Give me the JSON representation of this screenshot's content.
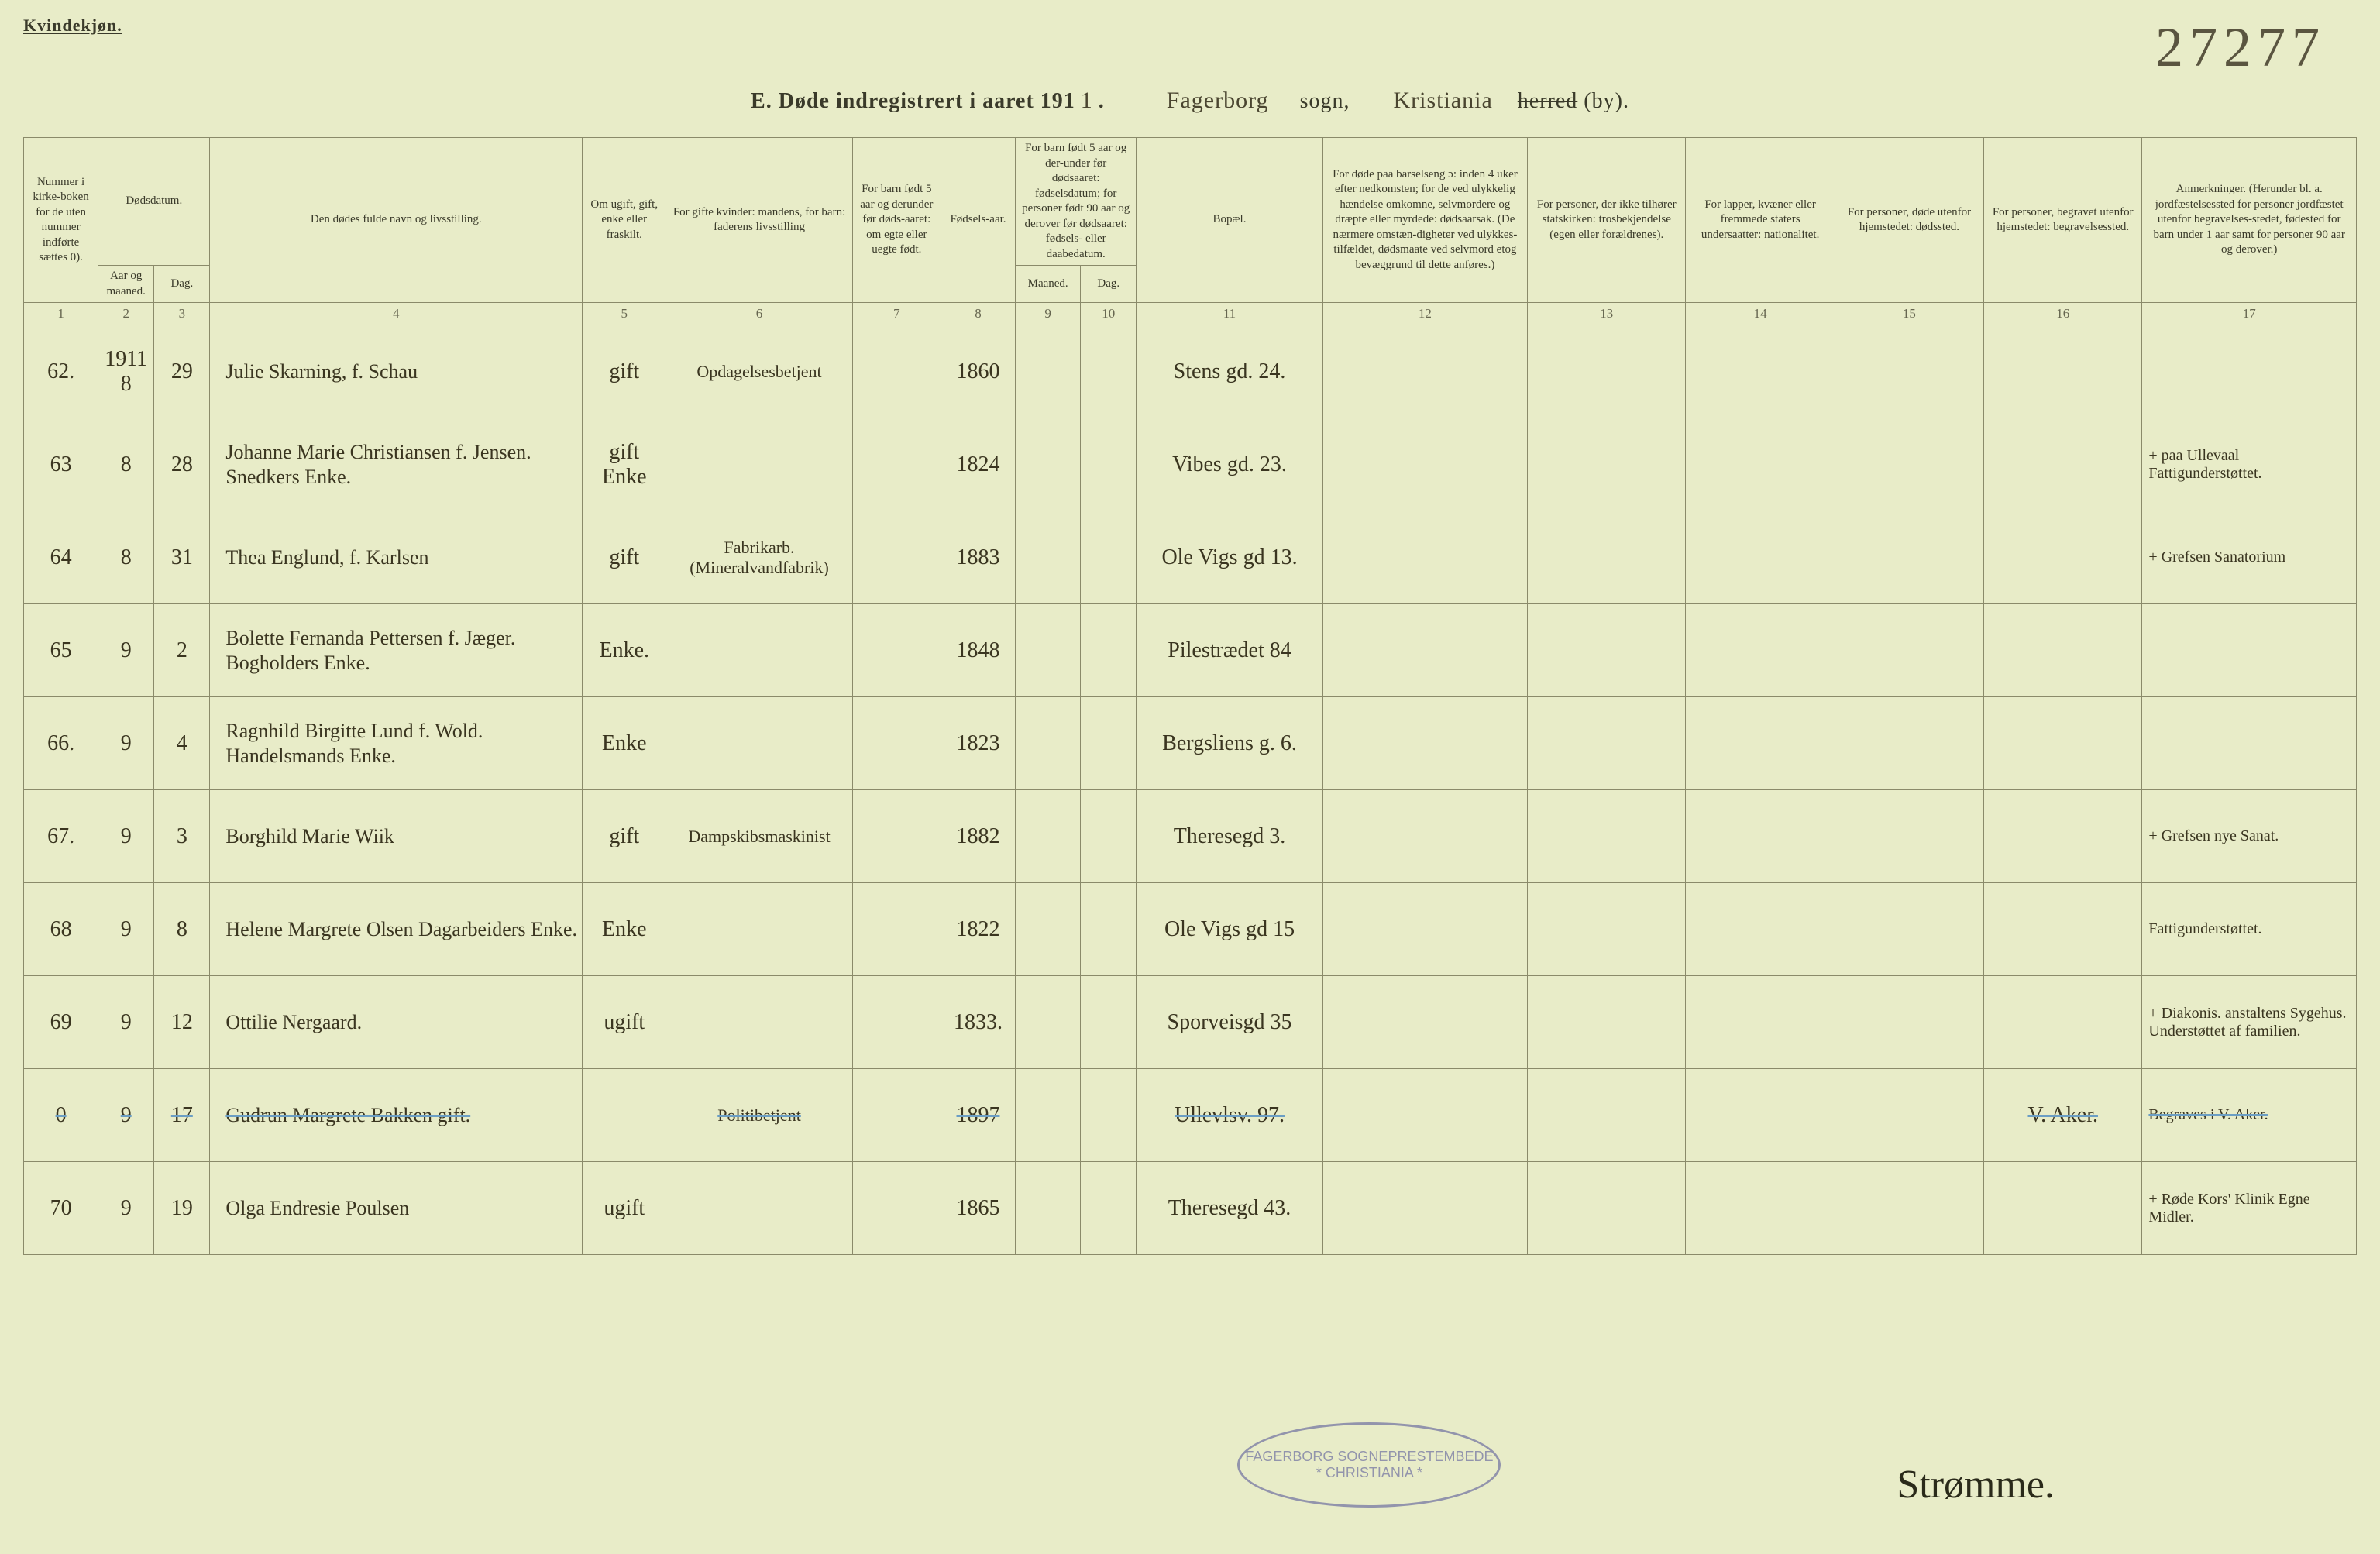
{
  "header": {
    "gender": "Kvindekjøn.",
    "page_number": "27277",
    "section_letter": "E.",
    "title_prefix": "Døde indregistrert i aaret 191",
    "year_suffix": "1",
    "sogn": "Fagerborg",
    "sogn_label": "sogn,",
    "by": "Kristiania",
    "herred_struck": "herred",
    "by_label": "(by)."
  },
  "columns": {
    "h1": "Nummer i kirke-boken for de uten nummer indførte sættes 0).",
    "h2_group": "Dødsdatum.",
    "h2": "Aar og maaned.",
    "h3": "Dag.",
    "h4": "Den dødes fulde navn og livsstilling.",
    "h5": "Om ugift, gift, enke eller fraskilt.",
    "h6": "For gifte kvinder: mandens, for barn: faderens livsstilling",
    "h7": "For barn født 5 aar og derunder før døds-aaret: om egte eller uegte født.",
    "h8": "Fødsels-aar.",
    "h9_group": "For barn født 5 aar og der-under før dødsaaret: fødselsdatum; for personer født 90 aar og derover før dødsaaret: fødsels- eller daabedatum.",
    "h9": "Maaned.",
    "h10": "Dag.",
    "h11": "Bopæl.",
    "h12": "For døde paa barselseng ɔ: inden 4 uker efter nedkomsten; for de ved ulykkelig hændelse omkomne, selvmordere og dræpte eller myrdede: dødsaarsak. (De nærmere omstæn-digheter ved ulykkes-tilfældet, dødsmaate ved selvmord etog bevæggrund til dette anføres.)",
    "h13": "For personer, der ikke tilhører statskirken: trosbekjendelse (egen eller forældrenes).",
    "h14": "For lapper, kvæner eller fremmede staters undersaatter: nationalitet.",
    "h15": "For personer, døde utenfor hjemstedet: dødssted.",
    "h16": "For personer, begravet utenfor hjemstedet: begravelsessted.",
    "h17": "Anmerkninger. (Herunder bl. a. jordfæstelsessted for personer jordfæstet utenfor begravelses-stedet, fødested for barn under 1 aar samt for personer 90 aar og derover.)"
  },
  "colnums": [
    "1",
    "2",
    "3",
    "4",
    "5",
    "6",
    "7",
    "8",
    "9",
    "10",
    "11",
    "12",
    "13",
    "14",
    "15",
    "16",
    "17"
  ],
  "rows": [
    {
      "num": "62.",
      "year": "1911",
      "month": "8",
      "day": "29",
      "name": "Julie Skarning, f. Schau",
      "marital": "gift",
      "mandens": "Opdagelsesbetjent",
      "fodselsaar": "1860",
      "bopael": "Stens gd. 24.",
      "note": ""
    },
    {
      "num": "63",
      "month": "8",
      "day": "28",
      "name": "Johanne Marie Christiansen f. Jensen. Snedkers Enke.",
      "marital": "gift Enke",
      "mandens": "",
      "fodselsaar": "1824",
      "bopael": "Vibes gd. 23.",
      "note": "+ paa Ullevaal Fattigunderstøttet."
    },
    {
      "num": "64",
      "month": "8",
      "day": "31",
      "name": "Thea Englund, f. Karlsen",
      "marital": "gift",
      "mandens": "Fabrikarb. (Mineralvandfabrik)",
      "fodselsaar": "1883",
      "bopael": "Ole Vigs gd 13.",
      "note": "+ Grefsen Sanatorium"
    },
    {
      "num": "65",
      "month": "9",
      "day": "2",
      "name": "Bolette Fernanda Pettersen f. Jæger. Bogholders Enke.",
      "marital": "Enke.",
      "mandens": "",
      "fodselsaar": "1848",
      "bopael": "Pilestrædet 84",
      "note": ""
    },
    {
      "num": "66.",
      "month": "9",
      "day": "4",
      "name": "Ragnhild Birgitte Lund f. Wold. Handelsmands Enke.",
      "marital": "Enke",
      "mandens": "",
      "fodselsaar": "1823",
      "bopael": "Bergsliens g. 6.",
      "note": ""
    },
    {
      "num": "67.",
      "month": "9",
      "day": "3",
      "name": "Borghild Marie Wiik",
      "marital": "gift",
      "mandens": "Dampskibsmaskinist",
      "fodselsaar": "1882",
      "bopael": "Theresegd 3.",
      "note": "+ Grefsen nye Sanat."
    },
    {
      "num": "68",
      "month": "9",
      "day": "8",
      "name": "Helene Margrete Olsen Dagarbeiders Enke.",
      "marital": "Enke",
      "mandens": "",
      "fodselsaar": "1822",
      "bopael": "Ole Vigs gd 15",
      "note": "Fattigunderstøttet."
    },
    {
      "num": "69",
      "month": "9",
      "day": "12",
      "name": "Ottilie Nergaard.",
      "marital": "ugift",
      "mandens": "",
      "fodselsaar": "1833.",
      "bopael": "Sporveisgd 35",
      "note": "+ Diakonis. anstaltens Sygehus. Understøttet af familien."
    },
    {
      "num": "0",
      "month": "9",
      "day": "17",
      "name": "Gudrun Margrete Bakken gift.",
      "marital": "",
      "mandens": "Politibetjent",
      "fodselsaar": "1897",
      "bopael": "Ullevlsv. 97.",
      "col16": "V. Aker.",
      "note": "Begraves i V. Aker.",
      "struck": true
    },
    {
      "num": "70",
      "month": "9",
      "day": "19",
      "name": "Olga Endresie Poulsen",
      "marital": "ugift",
      "mandens": "",
      "fodselsaar": "1865",
      "bopael": "Theresegd 43.",
      "note": "+ Røde Kors' Klinik Egne Midler."
    }
  ],
  "stamp": {
    "line1": "FAGERBORG SOGNEPRESTEMBEDE",
    "line2": "* CHRISTIANIA *"
  },
  "signature": "Strømme."
}
